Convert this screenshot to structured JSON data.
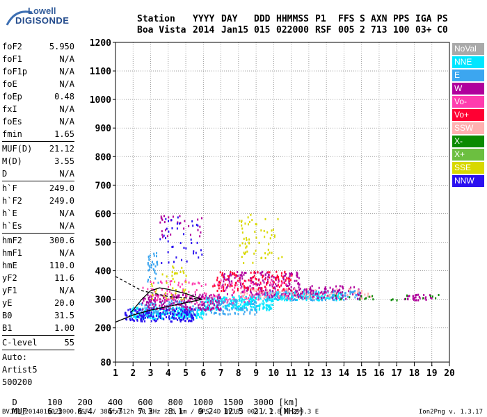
{
  "logo": {
    "top": "Lowell",
    "bottom": "DIGISONDE"
  },
  "header": {
    "cols": [
      {
        "label": "Station",
        "value": "Boa Vista",
        "x": 197
      },
      {
        "label": "YYYY",
        "value": "2014",
        "x": 277
      },
      {
        "label": "DAY",
        "value": "Jan15",
        "x": 318
      },
      {
        "label": "DDD",
        "value": "015",
        "x": 365
      },
      {
        "label": "HHMMSS",
        "value": "022000",
        "x": 397
      },
      {
        "label": "P1",
        "value": "RSF",
        "x": 453
      },
      {
        "label": "FFS",
        "value": "005",
        "x": 486
      },
      {
        "label": "S",
        "value": "2",
        "x": 517
      },
      {
        "label": "AXN",
        "value": "713",
        "x": 533
      },
      {
        "label": "PPS",
        "value": "100",
        "x": 565
      },
      {
        "label": "IGA",
        "value": "03+",
        "x": 597
      },
      {
        "label": "PS",
        "value": "C0",
        "x": 628
      }
    ]
  },
  "params": [
    {
      "k": "foF2",
      "v": "5.950"
    },
    {
      "k": "foF1",
      "v": "N/A"
    },
    {
      "k": "foF1p",
      "v": "N/A"
    },
    {
      "k": "foE",
      "v": "N/A"
    },
    {
      "k": "foEp",
      "v": "0.48"
    },
    {
      "k": "fxI",
      "v": "N/A"
    },
    {
      "k": "foEs",
      "v": "N/A"
    },
    {
      "k": "fmin",
      "v": "1.65"
    },
    {
      "sep": true
    },
    {
      "k": "MUF(D)",
      "v": "21.12"
    },
    {
      "k": "M(D)",
      "v": "3.55"
    },
    {
      "k": "D",
      "v": "N/A"
    },
    {
      "sep": true
    },
    {
      "k": "h`F",
      "v": "249.0"
    },
    {
      "k": "h`F2",
      "v": "249.0"
    },
    {
      "k": "h`E",
      "v": "N/A"
    },
    {
      "k": "h`Es",
      "v": "N/A"
    },
    {
      "sep": true
    },
    {
      "k": "hmF2",
      "v": "300.6"
    },
    {
      "k": "hmF1",
      "v": "N/A"
    },
    {
      "k": "hmE",
      "v": "110.0"
    },
    {
      "k": "yF2",
      "v": "11.6"
    },
    {
      "k": "yF1",
      "v": "N/A"
    },
    {
      "k": "yE",
      "v": "20.0"
    },
    {
      "k": "B0",
      "v": "31.5"
    },
    {
      "k": "B1",
      "v": "1.00"
    },
    {
      "sep": true
    },
    {
      "k": "C-level",
      "v": "55"
    },
    {
      "sep": true
    },
    {
      "note": "Auto:"
    },
    {
      "note": "Artist5"
    },
    {
      "note": "500200"
    }
  ],
  "legend": [
    {
      "label": "NoVal",
      "color": "#a9a9a9"
    },
    {
      "label": "NNE",
      "color": "#00e6ff"
    },
    {
      "label": "E",
      "color": "#3ca6f0"
    },
    {
      "label": "W",
      "color": "#b0009c"
    },
    {
      "label": "Vo-",
      "color": "#ff3cae"
    },
    {
      "label": "Vo+",
      "color": "#ff0033"
    },
    {
      "label": "SSW",
      "color": "#ffb0b0"
    },
    {
      "label": "X-",
      "color": "#0a8a00"
    },
    {
      "label": "X+",
      "color": "#6cbf40"
    },
    {
      "label": "SSE",
      "color": "#d8d800"
    },
    {
      "label": "NNW",
      "color": "#2a10f0"
    }
  ],
  "muf_table": {
    "d_label": "D",
    "d_values": [
      "100",
      "200",
      "400",
      "600",
      "800",
      "1000",
      "1500",
      "3000"
    ],
    "d_unit": "[km]",
    "muf_label": "MUF",
    "muf_values": [
      "6.3",
      "6.4",
      "6.7",
      "7.3",
      "8.1",
      "9.2",
      "12.5",
      "21.1"
    ],
    "muf_unit": "[MHz]"
  },
  "footer": {
    "left": "BVJ03_2014015022000.RSF / 384fx512h 50 kHz 2.5 km / DPS-4D BVJ03 003 / 2.8 N 299.3 E",
    "right": "Ion2Png v. 1.3.17"
  },
  "chart_data": {
    "type": "scatter",
    "title": "",
    "xlabel": "",
    "ylabel": "",
    "x_ticks": [
      1,
      2,
      3,
      4,
      5,
      6,
      7,
      8,
      9,
      10,
      11,
      12,
      13,
      14,
      15,
      16,
      17,
      18,
      19,
      20
    ],
    "y_ticks": [
      80,
      200,
      300,
      400,
      500,
      600,
      700,
      800,
      900,
      1000,
      1100,
      1200
    ],
    "xlim": [
      1,
      20
    ],
    "ylim": [
      80,
      1200
    ],
    "grid": true,
    "legend_placement": "right",
    "series": [
      {
        "name": "NNE",
        "color": "#00e6ff",
        "clusters": [
          {
            "x": [
              1.8,
              6.0
            ],
            "y": [
              235,
              275
            ],
            "n": 260
          },
          {
            "x": [
              6.0,
              10.0
            ],
            "y": [
              265,
              315
            ],
            "n": 240
          },
          {
            "x": [
              10.0,
              14.0
            ],
            "y": [
              300,
              330
            ],
            "n": 140
          }
        ]
      },
      {
        "name": "E",
        "color": "#3ca6f0",
        "clusters": [
          {
            "x": [
              2.0,
              9.0
            ],
            "y": [
              250,
              300
            ],
            "n": 180
          },
          {
            "x": [
              9.0,
              15.0
            ],
            "y": [
              300,
              335
            ],
            "n": 140
          },
          {
            "x": [
              2.8,
              3.4
            ],
            "y": [
              350,
              470
            ],
            "n": 35
          }
        ]
      },
      {
        "name": "W",
        "color": "#b0009c",
        "clusters": [
          {
            "x": [
              2.5,
              7.0
            ],
            "y": [
              265,
              320
            ],
            "n": 200
          },
          {
            "x": [
              7.0,
              11.5
            ],
            "y": [
              310,
              400
            ],
            "n": 200
          },
          {
            "x": [
              11.5,
              15.0
            ],
            "y": [
              305,
              350
            ],
            "n": 80
          },
          {
            "x": [
              17.0,
              19.0
            ],
            "y": [
              300,
              320
            ],
            "n": 30
          },
          {
            "x": [
              3.5,
              6.0
            ],
            "y": [
              520,
              600
            ],
            "n": 30
          }
        ]
      },
      {
        "name": "Vo-",
        "color": "#ff3cae",
        "clusters": [
          {
            "x": [
              2.5,
              11.0
            ],
            "y": [
              290,
              370
            ],
            "n": 140
          }
        ]
      },
      {
        "name": "Vo+",
        "color": "#ff0033",
        "clusters": [
          {
            "x": [
              6.5,
              11.0
            ],
            "y": [
              330,
              400
            ],
            "n": 120
          }
        ]
      },
      {
        "name": "SSW",
        "color": "#ffb0b0",
        "clusters": [
          {
            "x": [
              8.0,
              15.5
            ],
            "y": [
              305,
              340
            ],
            "n": 70
          }
        ]
      },
      {
        "name": "X-",
        "color": "#0a8a00",
        "clusters": [
          {
            "x": [
              13.0,
              19.5
            ],
            "y": [
              300,
              320
            ],
            "n": 20
          }
        ]
      },
      {
        "name": "SSE",
        "color": "#d8d800",
        "clusters": [
          {
            "x": [
              8.0,
              10.5
            ],
            "y": [
              430,
              600
            ],
            "n": 60
          },
          {
            "x": [
              3.0,
              5.0
            ],
            "y": [
              300,
              420
            ],
            "n": 40
          }
        ]
      },
      {
        "name": "NNW",
        "color": "#2a10f0",
        "clusters": [
          {
            "x": [
              1.5,
              5.5
            ],
            "y": [
              225,
              270
            ],
            "n": 160
          },
          {
            "x": [
              3.5,
              6.0
            ],
            "y": [
              430,
              600
            ],
            "n": 40
          }
        ]
      }
    ],
    "profile_dashed": {
      "x": [
        1.0,
        2.5,
        4.0,
        5.5,
        6.0
      ],
      "y": [
        380,
        330,
        310,
        302,
        300
      ]
    },
    "profile_solid": {
      "x": [
        1.0,
        2.0,
        3.0,
        4.0,
        5.0,
        5.95
      ],
      "y": [
        220,
        245,
        262,
        275,
        288,
        300
      ]
    },
    "trace_upper": {
      "x": [
        1.9,
        2.5,
        3.0,
        3.5,
        4.0,
        5.0,
        5.9
      ],
      "y": [
        255,
        300,
        330,
        340,
        335,
        320,
        300
      ]
    }
  }
}
